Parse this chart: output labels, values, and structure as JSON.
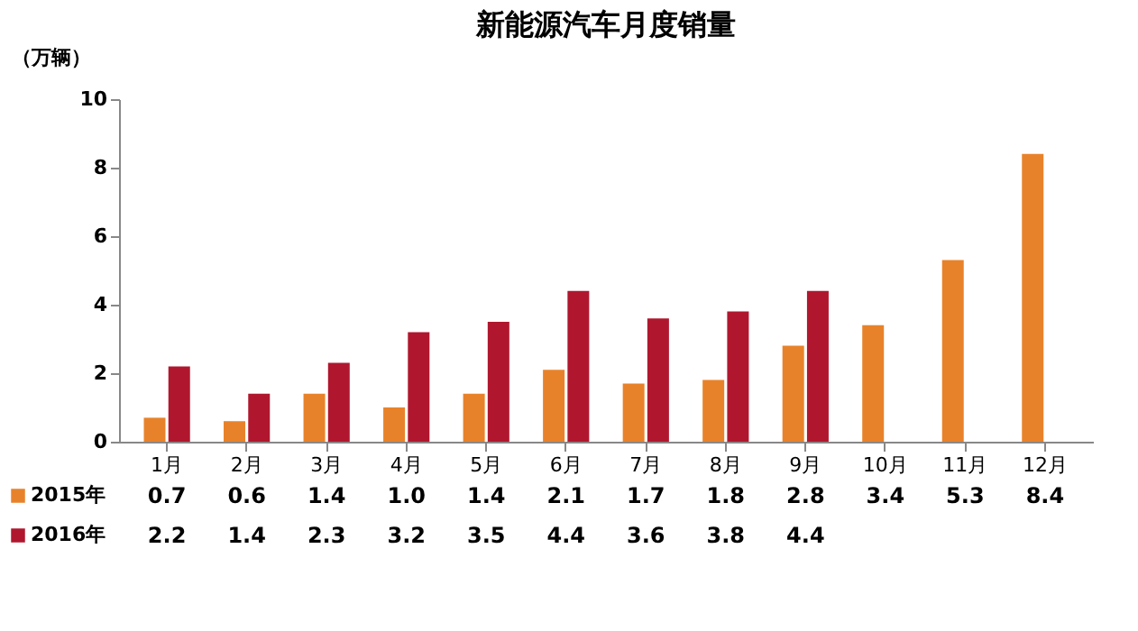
{
  "chart_data": {
    "type": "bar",
    "title": "新能源汽车月度销量",
    "ylabel": "（万辆）",
    "categories": [
      "1月",
      "2月",
      "3月",
      "4月",
      "5月",
      "6月",
      "7月",
      "8月",
      "9月",
      "10月",
      "11月",
      "12月"
    ],
    "series": [
      {
        "name": "2015年",
        "color": "#e8822a",
        "values": [
          0.7,
          0.6,
          1.4,
          1.0,
          1.4,
          2.1,
          1.7,
          1.8,
          2.8,
          3.4,
          5.3,
          8.4
        ],
        "value_labels": [
          "0.7",
          "0.6",
          "1.4",
          "1.0",
          "1.4",
          "2.1",
          "1.7",
          "1.8",
          "2.8",
          "3.4",
          "5.3",
          "8.4"
        ]
      },
      {
        "name": "2016年",
        "color": "#b0172e",
        "values": [
          2.2,
          1.4,
          2.3,
          3.2,
          3.5,
          4.4,
          3.6,
          3.8,
          4.4,
          null,
          null,
          null
        ],
        "value_labels": [
          "2.2",
          "1.4",
          "2.3",
          "3.2",
          "3.5",
          "4.4",
          "3.6",
          "3.8",
          "4.4",
          null,
          null,
          null
        ]
      }
    ],
    "ylim": [
      0,
      10
    ],
    "yticks": [
      0,
      2,
      4,
      6,
      8,
      10
    ],
    "grid": false,
    "legend": "bottom"
  }
}
